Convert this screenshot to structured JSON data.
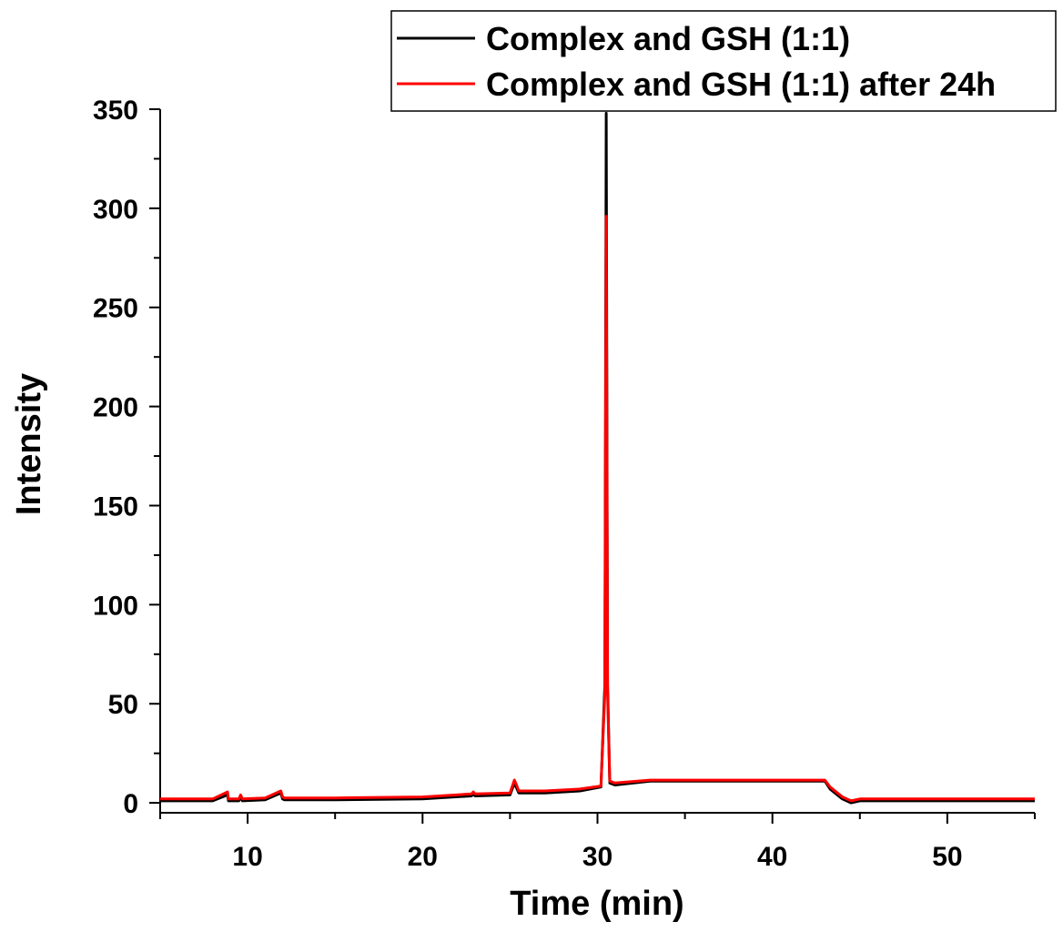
{
  "chart_data": {
    "type": "line",
    "title": "",
    "xlabel": "Time (min)",
    "ylabel": "Intensity",
    "xlim": [
      5,
      55
    ],
    "ylim": [
      -5,
      350
    ],
    "x_ticks": [
      10,
      20,
      30,
      40,
      50
    ],
    "y_ticks": [
      0,
      50,
      100,
      150,
      200,
      250,
      300,
      350
    ],
    "grid": false,
    "legend_position": "top-right",
    "series": [
      {
        "name": "Complex and GSH (1:1)",
        "color": "#000000",
        "x": [
          5,
          8,
          8.85,
          8.9,
          8.95,
          9.5,
          9.6,
          9.7,
          11,
          11.9,
          12.0,
          12.1,
          15,
          20,
          22.8,
          22.9,
          23.0,
          25,
          25.25,
          25.35,
          25.5,
          27,
          29,
          30.2,
          30.42,
          30.5,
          30.58,
          30.7,
          31,
          33,
          35,
          40,
          43,
          43.3,
          44,
          44.5,
          45,
          47,
          50,
          55
        ],
        "y": [
          1,
          1,
          4,
          1,
          1,
          1,
          3,
          1,
          1.5,
          5,
          2,
          1.5,
          1.5,
          2,
          3.5,
          4.5,
          3.5,
          4,
          10,
          8,
          5,
          5,
          6,
          8,
          60,
          348,
          60,
          10,
          9,
          11,
          11,
          11,
          11,
          7,
          2,
          0,
          1,
          1,
          1,
          1
        ]
      },
      {
        "name": "Complex and GSH (1:1) after 24h",
        "color": "#ff0000",
        "x": [
          5,
          8,
          8.85,
          8.9,
          8.95,
          9.5,
          9.6,
          9.7,
          11,
          11.9,
          12.0,
          12.1,
          15,
          20,
          22.8,
          22.9,
          23.0,
          25,
          25.25,
          25.35,
          25.5,
          27,
          29,
          30.2,
          30.42,
          30.5,
          30.58,
          30.7,
          31,
          33,
          35,
          40,
          43,
          43.3,
          44,
          44.5,
          45,
          47,
          50,
          55
        ],
        "y": [
          2,
          2,
          5.5,
          2,
          2,
          2,
          4,
          2,
          2.5,
          6,
          3,
          2.5,
          2.5,
          3,
          4.5,
          5.5,
          4.5,
          5,
          11.5,
          9.5,
          6,
          6,
          7,
          8.5,
          55,
          296,
          55,
          11,
          10,
          11.5,
          11.5,
          11.5,
          11.5,
          8,
          3,
          1,
          2,
          2,
          2,
          2
        ]
      }
    ]
  }
}
